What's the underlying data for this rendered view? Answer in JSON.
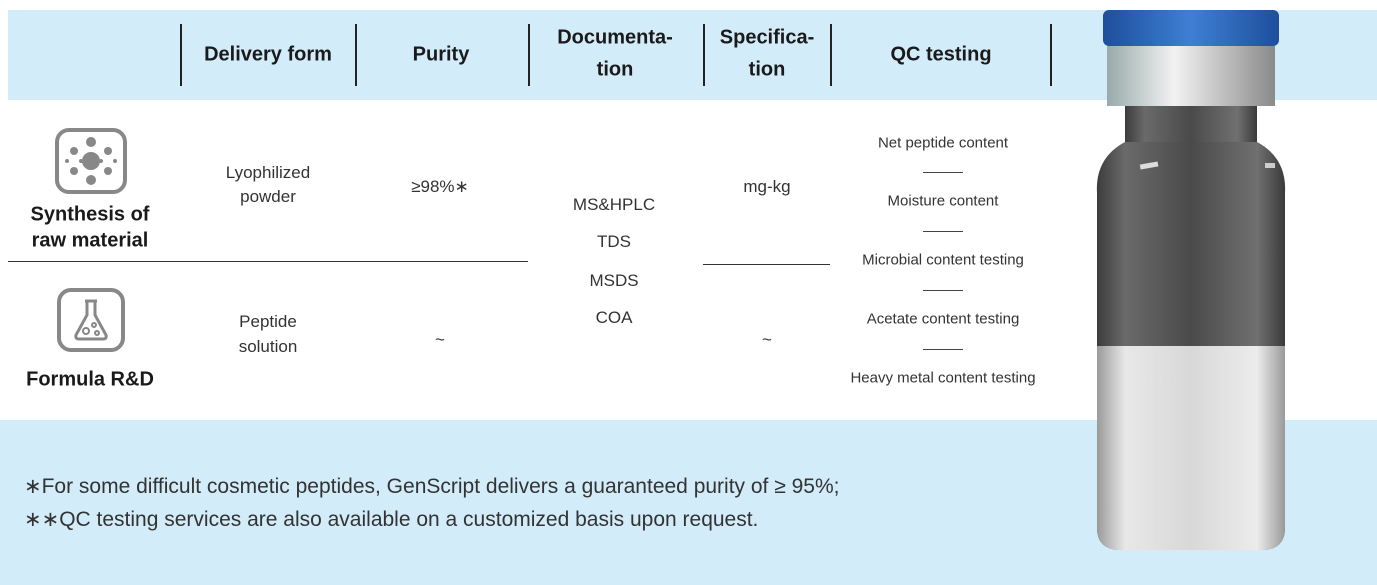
{
  "table": {
    "header": {
      "delivery_form": "Delivery form",
      "purity": "Purity",
      "documentation": [
        "Documenta-",
        "tion"
      ],
      "specification": [
        "Specifica-",
        "tion"
      ],
      "qc_testing": "QC testing"
    },
    "rows": [
      {
        "label": [
          "Synthesis of",
          "raw material"
        ],
        "delivery_form": [
          "Lyophilized",
          "powder"
        ],
        "purity": "≥98%∗",
        "specification": "mg-kg"
      },
      {
        "label": [
          "Formula R&D"
        ],
        "delivery_form": [
          "Peptide",
          "solution"
        ],
        "purity": "~",
        "specification": "~"
      }
    ],
    "documentation": [
      "MS&HPLC",
      "TDS",
      "MSDS",
      "COA"
    ],
    "qc_testing": [
      "Net peptide content",
      "Moisture content",
      "Microbial content testing",
      "Acetate content testing",
      "Heavy metal content testing"
    ]
  },
  "footnotes": [
    "∗For some difficult cosmetic peptides, GenScript delivers a guaranteed purity of ≥ 95%;",
    "∗∗QC testing services are also available on a customized basis upon request."
  ]
}
